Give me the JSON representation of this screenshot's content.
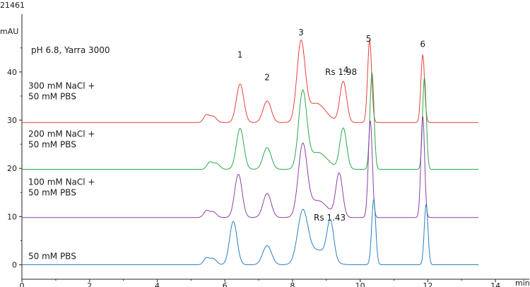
{
  "figure_id": "21461",
  "chart_data": {
    "type": "line",
    "xlabel": "min",
    "ylabel": "mAU",
    "xlim": [
      0,
      15
    ],
    "ylim": [
      -3,
      52
    ],
    "x_ticks": [
      0,
      2,
      4,
      6,
      8,
      10,
      12,
      14
    ],
    "y_ticks": [
      0,
      10,
      20,
      30,
      40
    ],
    "x_end": 13.5,
    "grid": false,
    "annotations": {
      "condition": "pH 6.8, Yarra 3000",
      "rs_top": "Rs 1.98",
      "rs_bottom": "Rs 1.43"
    },
    "peak_labels": [
      {
        "label": "1",
        "x": 6.45,
        "y": 43.0
      },
      {
        "label": "2",
        "x": 7.25,
        "y": 38.3
      },
      {
        "label": "3",
        "x": 8.25,
        "y": 47.6
      },
      {
        "label": "4",
        "x": 9.58,
        "y": 39.8
      },
      {
        "label": "5",
        "x": 10.25,
        "y": 46.3
      },
      {
        "label": "6",
        "x": 11.85,
        "y": 45.2
      }
    ],
    "series": [
      {
        "name": "300 mM NaCl +\n50 mM PBS",
        "color": "#e8403a",
        "baseline": 29.5,
        "label_y": 34.5,
        "peaks": [
          {
            "x": 5.45,
            "h": 1.5,
            "w": 0.08
          },
          {
            "x": 5.65,
            "h": 1.3,
            "w": 0.1
          },
          {
            "x": 6.45,
            "h": 8.0,
            "w": 0.11
          },
          {
            "x": 7.25,
            "h": 4.5,
            "w": 0.12
          },
          {
            "x": 8.25,
            "h": 16.0,
            "w": 0.12
          },
          {
            "x": 8.7,
            "h": 4.0,
            "w": 0.28
          },
          {
            "x": 9.5,
            "h": 8.5,
            "w": 0.1
          },
          {
            "x": 10.28,
            "h": 17.0,
            "w": 0.06
          },
          {
            "x": 11.85,
            "h": 14.0,
            "w": 0.055
          }
        ]
      },
      {
        "name": "200 mM NaCl +\n50 mM PBS",
        "color": "#2aa84a",
        "baseline": 19.8,
        "label_y": 24.5,
        "peaks": [
          {
            "x": 5.55,
            "h": 1.4,
            "w": 0.08
          },
          {
            "x": 5.75,
            "h": 1.2,
            "w": 0.1
          },
          {
            "x": 6.45,
            "h": 8.5,
            "w": 0.11
          },
          {
            "x": 7.25,
            "h": 4.5,
            "w": 0.12
          },
          {
            "x": 8.3,
            "h": 15.5,
            "w": 0.12
          },
          {
            "x": 8.75,
            "h": 3.5,
            "w": 0.28
          },
          {
            "x": 9.5,
            "h": 8.5,
            "w": 0.1
          },
          {
            "x": 10.35,
            "h": 20.0,
            "w": 0.06
          },
          {
            "x": 11.9,
            "h": 19.0,
            "w": 0.055
          }
        ]
      },
      {
        "name": "100 mM NaCl +\n50 mM PBS",
        "color": "#8e3fa8",
        "baseline": 9.8,
        "label_y": 14.5,
        "peaks": [
          {
            "x": 5.45,
            "h": 1.3,
            "w": 0.08
          },
          {
            "x": 5.65,
            "h": 1.2,
            "w": 0.1
          },
          {
            "x": 6.4,
            "h": 9.0,
            "w": 0.11
          },
          {
            "x": 7.25,
            "h": 5.0,
            "w": 0.12
          },
          {
            "x": 8.3,
            "h": 14.5,
            "w": 0.13
          },
          {
            "x": 8.75,
            "h": 3.5,
            "w": 0.28
          },
          {
            "x": 9.38,
            "h": 9.0,
            "w": 0.1
          },
          {
            "x": 10.3,
            "h": 20.0,
            "w": 0.06
          },
          {
            "x": 11.85,
            "h": 21.0,
            "w": 0.055
          }
        ]
      },
      {
        "name": "50 mM PBS",
        "color": "#2a7fc0",
        "baseline": 0.0,
        "label_y": 1.2,
        "peaks": [
          {
            "x": 5.45,
            "h": 1.3,
            "w": 0.08
          },
          {
            "x": 5.65,
            "h": 1.3,
            "w": 0.1
          },
          {
            "x": 6.25,
            "h": 9.0,
            "w": 0.11
          },
          {
            "x": 7.25,
            "h": 4.0,
            "w": 0.13
          },
          {
            "x": 8.3,
            "h": 10.5,
            "w": 0.15
          },
          {
            "x": 8.75,
            "h": 3.0,
            "w": 0.3
          },
          {
            "x": 9.12,
            "h": 8.0,
            "w": 0.1
          },
          {
            "x": 10.4,
            "h": 13.5,
            "w": 0.06
          },
          {
            "x": 11.95,
            "h": 12.5,
            "w": 0.055
          }
        ]
      }
    ]
  }
}
